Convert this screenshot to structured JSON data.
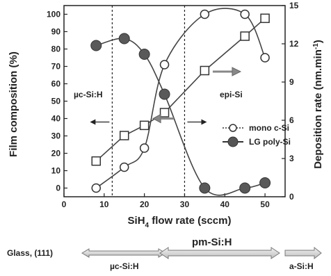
{
  "chart_data": {
    "type": "line",
    "xlabel_main": "SiH",
    "xlabel_sub": "4",
    "xlabel_rest": " flow rate (sccm)",
    "ylabel_left": "Film composition (%)",
    "ylabel_right_main": "Deposition rate (nm.min",
    "ylabel_right_sup": "-1",
    "ylabel_right_close": ")",
    "xlim": [
      0,
      55
    ],
    "ylim_left": [
      -5,
      105
    ],
    "ylim_right": [
      0,
      15
    ],
    "x_ticks": [
      0,
      10,
      20,
      30,
      40,
      50
    ],
    "y_left_ticks": [
      0,
      10,
      20,
      30,
      40,
      50,
      60,
      70,
      80,
      90,
      100
    ],
    "y_right_ticks": [
      0,
      3,
      6,
      9,
      12,
      15
    ],
    "vlines": [
      12,
      30
    ],
    "series": [
      {
        "name": "mono c-Si",
        "marker": "open-circle",
        "axis": "left",
        "x": [
          8,
          15,
          20,
          25,
          35,
          45,
          50
        ],
        "y": [
          0,
          12,
          23,
          71,
          100,
          100,
          75
        ]
      },
      {
        "name": "LG poly-Si",
        "marker": "filled-circle",
        "axis": "left",
        "x": [
          8,
          15,
          20,
          25,
          35,
          45,
          50
        ],
        "y": [
          82,
          86,
          77,
          54,
          0,
          0,
          3
        ]
      },
      {
        "name": "",
        "marker": "open-square",
        "axis": "right",
        "x": [
          8,
          15,
          20,
          25,
          35,
          45,
          50
        ],
        "y": [
          2.8,
          4.8,
          5.6,
          6.6,
          9.9,
          12.6,
          14.0
        ]
      }
    ],
    "annotations": {
      "uc": "µc-Si:H",
      "epi": "epi-Si"
    },
    "arrows": [
      {
        "direction": "left",
        "series_axis": "left"
      },
      {
        "direction": "right",
        "series_axis": "right"
      }
    ]
  },
  "bottom_bar": {
    "glass_label": "Glass, (111)",
    "uc_label": "µc-Si:H",
    "pm_label": "pm-Si:H",
    "a_label": "a-Si:H"
  }
}
